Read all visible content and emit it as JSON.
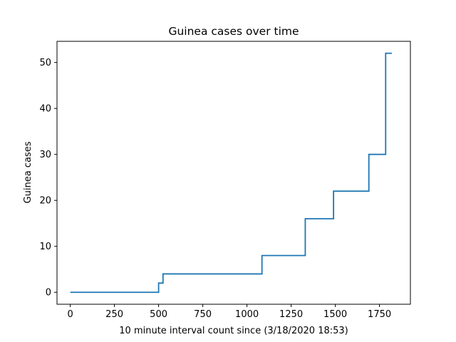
{
  "chart_data": {
    "type": "line",
    "title": "Guinea cases over time",
    "xlabel": "10 minute interval count since (3/18/2020 18:53)",
    "ylabel": "Guinea cases",
    "xlim": [
      -75,
      1925
    ],
    "ylim": [
      -2.6,
      54.6
    ],
    "xticks": [
      0,
      250,
      500,
      750,
      1000,
      1250,
      1500,
      1750
    ],
    "yticks": [
      0,
      10,
      20,
      30,
      40,
      50
    ],
    "grid": false,
    "line_color": "#1f77b4",
    "drawstyle": "steps-post",
    "series": [
      {
        "x": [
          0,
          500,
          525,
          1085,
          1330,
          1490,
          1690,
          1785,
          1820
        ],
        "y": [
          0,
          2,
          4,
          8,
          16,
          22,
          30,
          52,
          52
        ]
      }
    ]
  }
}
